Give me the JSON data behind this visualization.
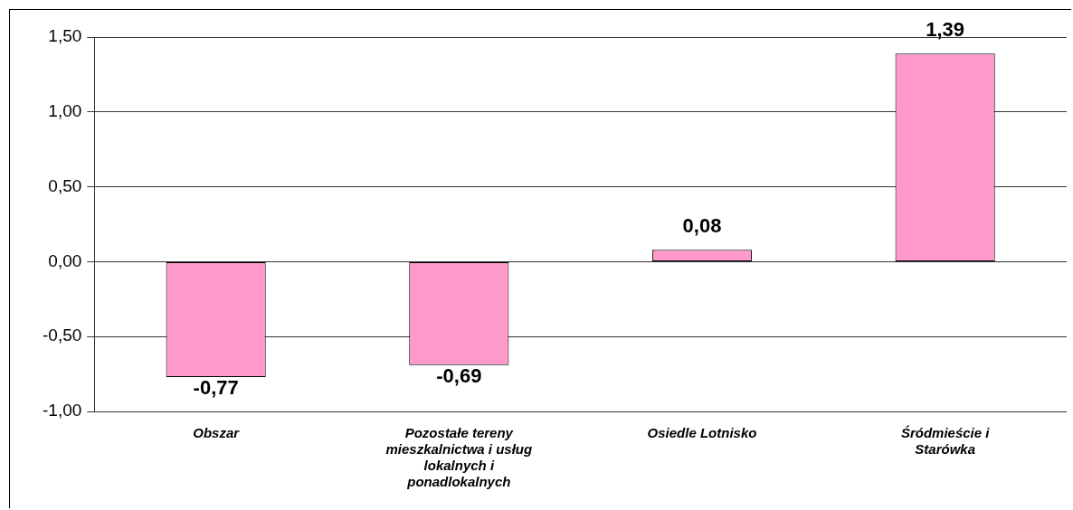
{
  "chart_data": {
    "type": "bar",
    "categories": [
      "Obszar",
      "Pozostałe tereny mieszkalnictwa i usług lokalnych i ponadlokalnych",
      "Osiedle Lotnisko",
      "Śródmieście i Starówka"
    ],
    "values": [
      -0.77,
      -0.69,
      0.08,
      1.39
    ],
    "value_labels": [
      "-0,77",
      "-0,69",
      "0,08",
      "1,39"
    ],
    "color": "#ff99cc",
    "ylim": [
      -1,
      1.5
    ],
    "yticks": [
      {
        "value": -1,
        "label": "-1,00"
      },
      {
        "value": -0.5,
        "label": "-0,50"
      },
      {
        "value": 0,
        "label": "0,00"
      },
      {
        "value": 0.5,
        "label": "0,50"
      },
      {
        "value": 1,
        "label": "1,00"
      },
      {
        "value": 1.5,
        "label": "1,50"
      }
    ],
    "grid": "y",
    "legend": false
  }
}
